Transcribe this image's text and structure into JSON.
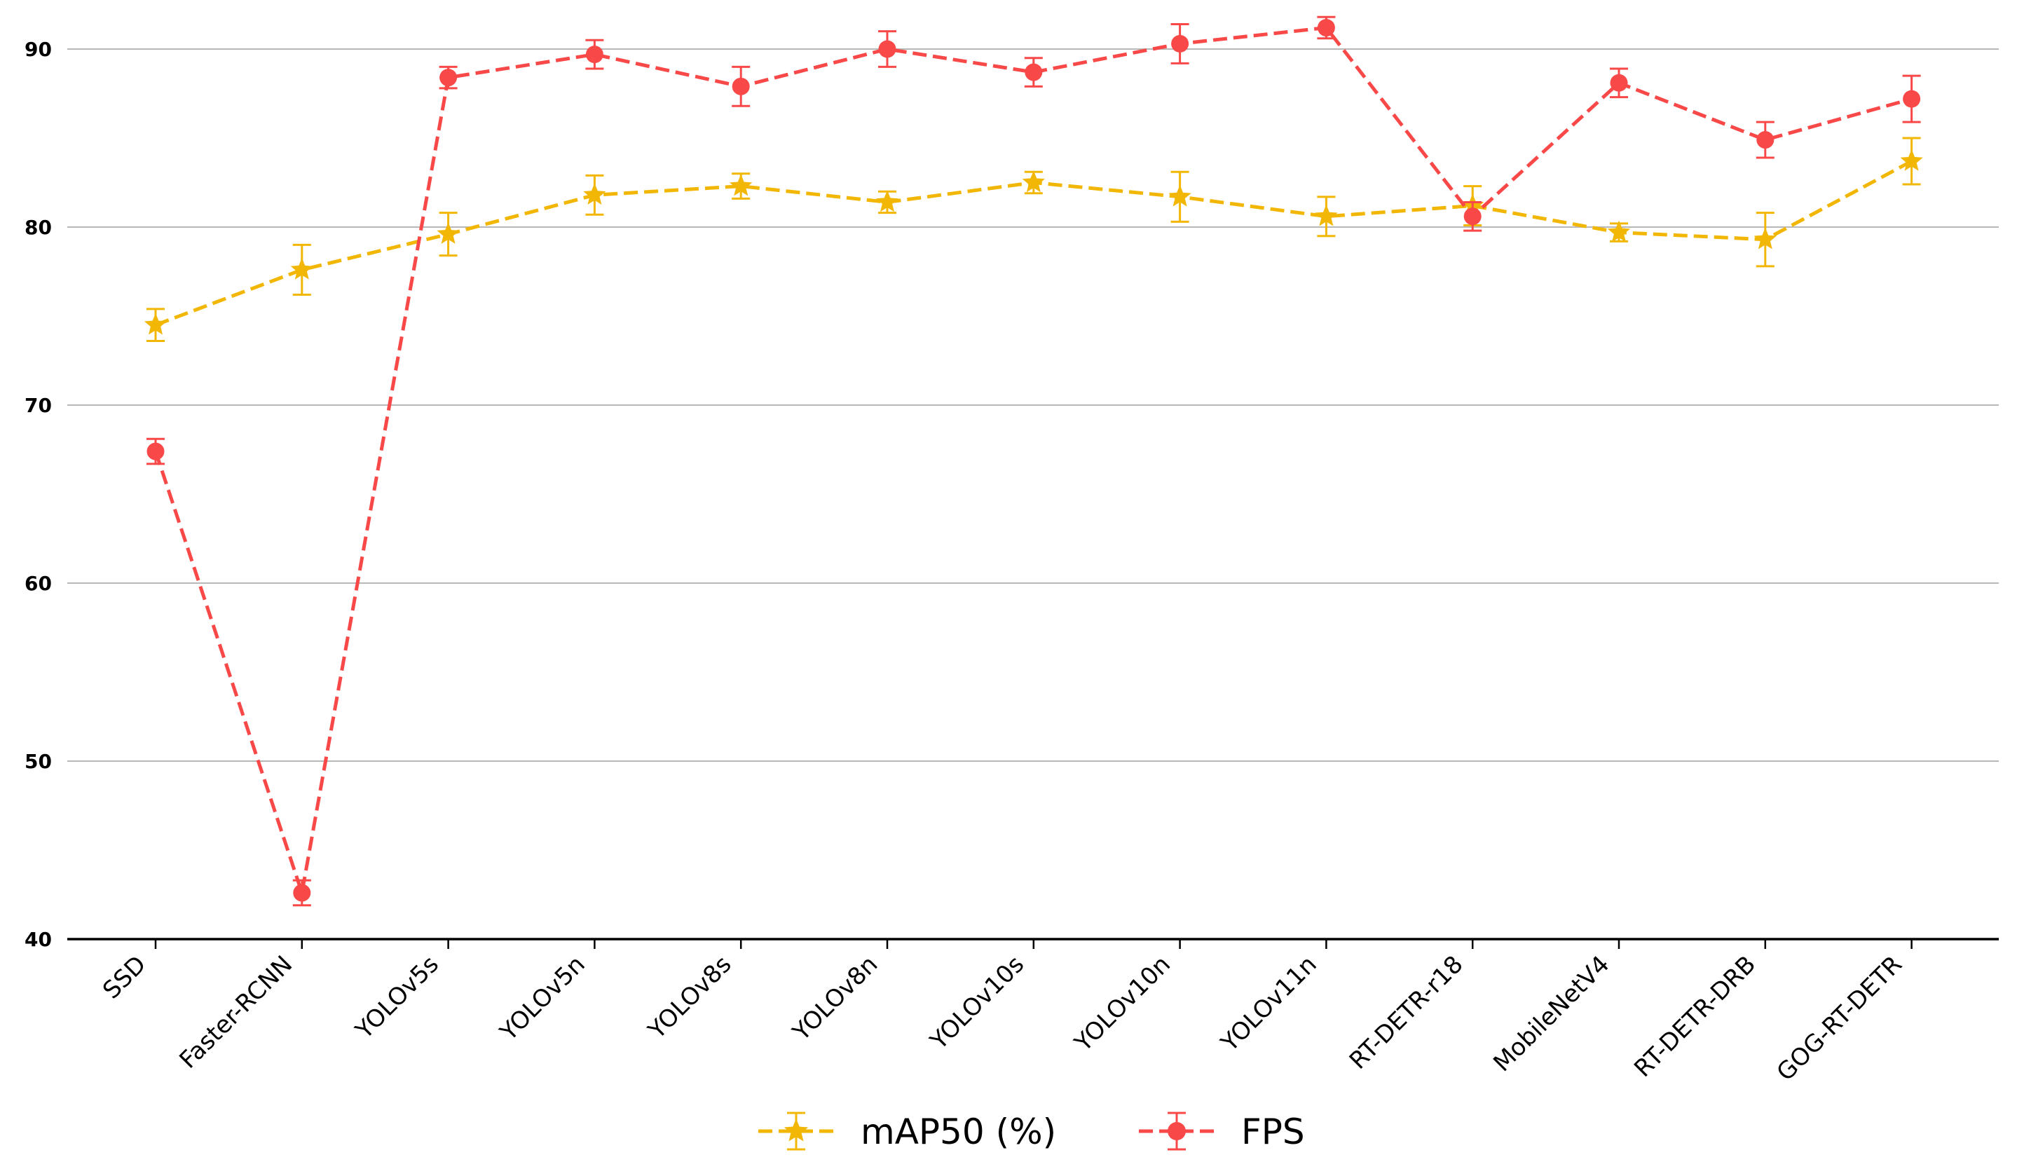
{
  "chart_data": {
    "type": "line",
    "title": "",
    "xlabel": "",
    "ylabel": "",
    "ylim": [
      40,
      92
    ],
    "yticks": [
      40,
      50,
      60,
      70,
      80,
      90
    ],
    "grid": "horizontal",
    "legend_position": "bottom-center",
    "categories": [
      "SSD",
      "Faster-RCNN",
      "YOLOv5s",
      "YOLOv5n",
      "YOLOv8s",
      "YOLOv8n",
      "YOLOv10s",
      "YOLOv10n",
      "YOLOv11n",
      "RT-DETR-r18",
      "MobileNetV4",
      "RT-DETR-DRB",
      "GOG-RT-DETR"
    ],
    "series": [
      {
        "name": "mAP50 (%)",
        "color": "#F2B705",
        "marker": "star",
        "linestyle": "dashed",
        "values": [
          74.5,
          77.6,
          79.6,
          81.8,
          82.3,
          81.4,
          82.5,
          81.7,
          80.6,
          81.2,
          79.7,
          79.3,
          83.7
        ],
        "errors": [
          0.9,
          1.4,
          1.2,
          1.1,
          0.7,
          0.6,
          0.6,
          1.4,
          1.1,
          1.1,
          0.5,
          1.5,
          1.3
        ]
      },
      {
        "name": "FPS",
        "color": "#F94848",
        "marker": "circle",
        "linestyle": "dashed",
        "values": [
          67.4,
          42.6,
          88.4,
          89.7,
          87.9,
          90.0,
          88.7,
          90.3,
          91.2,
          80.6,
          88.1,
          84.9,
          87.2
        ],
        "errors": [
          0.7,
          0.7,
          0.6,
          0.8,
          1.1,
          1.0,
          0.8,
          1.1,
          0.6,
          0.8,
          0.8,
          1.0,
          1.3
        ]
      }
    ]
  }
}
